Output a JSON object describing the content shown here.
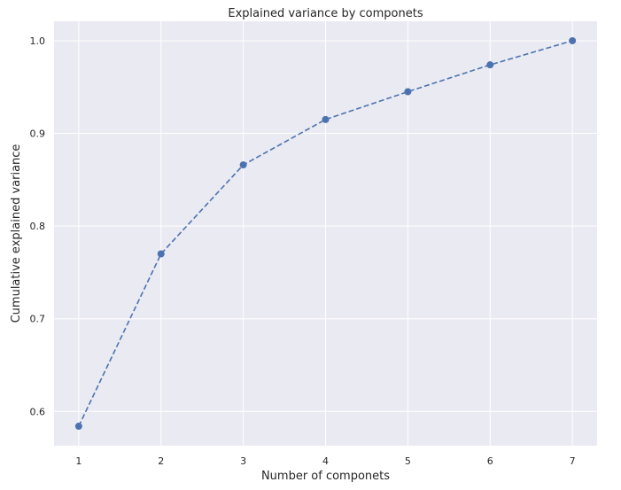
{
  "chart_data": {
    "type": "line",
    "title": "Explained variance by componets",
    "xlabel": "Number of componets",
    "ylabel": "Cumulative explained variance",
    "x": [
      1,
      2,
      3,
      4,
      5,
      6,
      7
    ],
    "xticks": [
      "1",
      "2",
      "3",
      "4",
      "5",
      "6",
      "7"
    ],
    "yticks": [
      "0.6",
      "0.7",
      "0.8",
      "0.9",
      "1.0"
    ],
    "xlim": [
      0.7,
      7.3
    ],
    "ylim": [
      0.563,
      1.021
    ],
    "grid": true,
    "series": [
      {
        "values": [
          0.584,
          0.77,
          0.866,
          0.915,
          0.945,
          0.974,
          1.0
        ],
        "color": "#4c72b0",
        "line_style": "dashed",
        "marker": "circle"
      }
    ],
    "background_color": "#eaeaf2",
    "grid_color": "#ffffff"
  }
}
